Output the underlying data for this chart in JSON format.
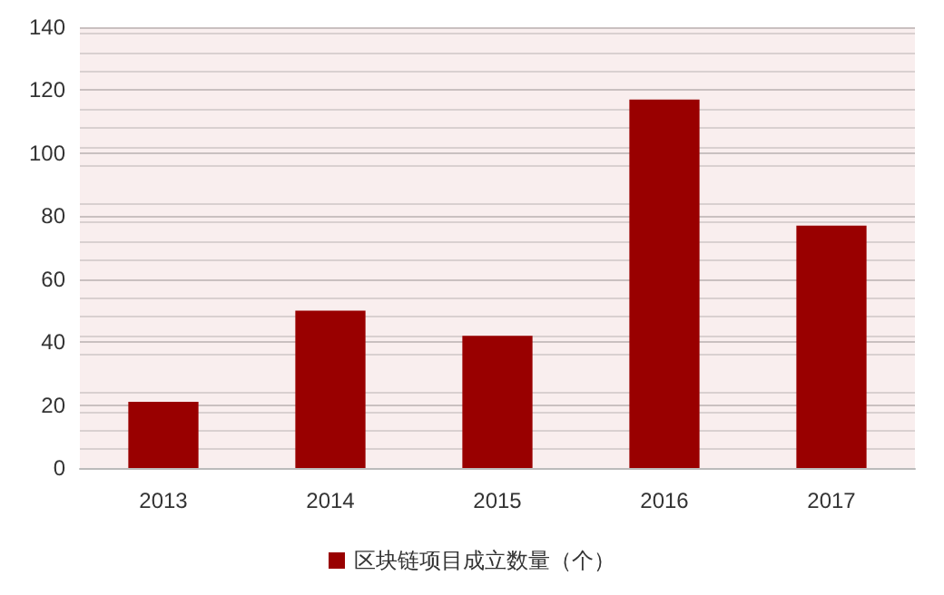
{
  "chart_data": {
    "type": "bar",
    "categories": [
      "2013",
      "2014",
      "2015",
      "2016",
      "2017"
    ],
    "series": [
      {
        "name": "区块链项目成立数量（个）",
        "color": "#990000",
        "values": [
          21,
          50,
          42,
          117,
          77
        ]
      }
    ],
    "ylim": [
      0,
      140
    ],
    "yticks": [
      0,
      20,
      40,
      60,
      80,
      100,
      120,
      140
    ],
    "grid": "y",
    "legend": "bottom"
  }
}
